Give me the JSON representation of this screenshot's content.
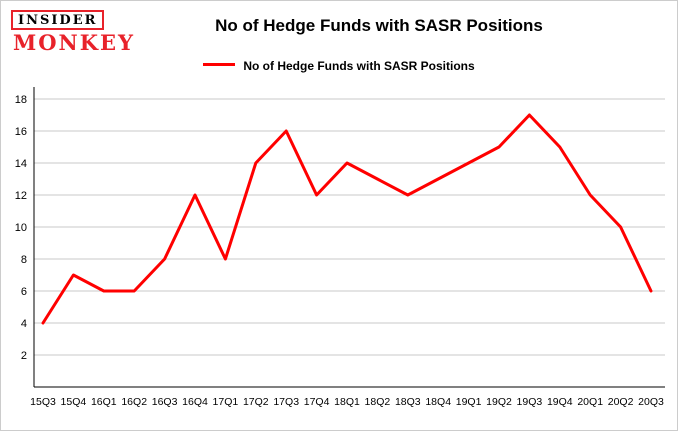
{
  "logo": {
    "line1": "INSIDER",
    "line2": "MONKEY",
    "accent_color": "#e8222a"
  },
  "header": {
    "title": "No of Hedge Funds with SASR Positions"
  },
  "legend": {
    "label": "No of Hedge Funds with SASR Positions",
    "line_color": "#ff0000"
  },
  "chart_data": {
    "type": "line",
    "title": "No of Hedge Funds with SASR Positions",
    "categories": [
      "15Q3",
      "15Q4",
      "16Q1",
      "16Q2",
      "16Q3",
      "16Q4",
      "17Q1",
      "17Q2",
      "17Q3",
      "17Q4",
      "18Q1",
      "18Q2",
      "18Q3",
      "18Q4",
      "19Q1",
      "19Q2",
      "19Q3",
      "19Q4",
      "20Q1",
      "20Q2",
      "20Q3"
    ],
    "series": [
      {
        "name": "No of Hedge Funds with SASR Positions",
        "values": [
          4,
          7,
          6,
          6,
          8,
          12,
          8,
          14,
          16,
          12,
          14,
          13,
          12,
          13,
          14,
          15,
          17,
          15,
          12,
          10,
          6
        ],
        "color": "#ff0000"
      }
    ],
    "xlabel": "",
    "ylabel": "",
    "ylim": [
      0,
      18
    ],
    "yticks": [
      2,
      4,
      6,
      8,
      10,
      12,
      14,
      16,
      18
    ],
    "grid": true,
    "gridline_color": "#c8c8c8",
    "axis_color": "#000000",
    "legend_position": "top"
  }
}
